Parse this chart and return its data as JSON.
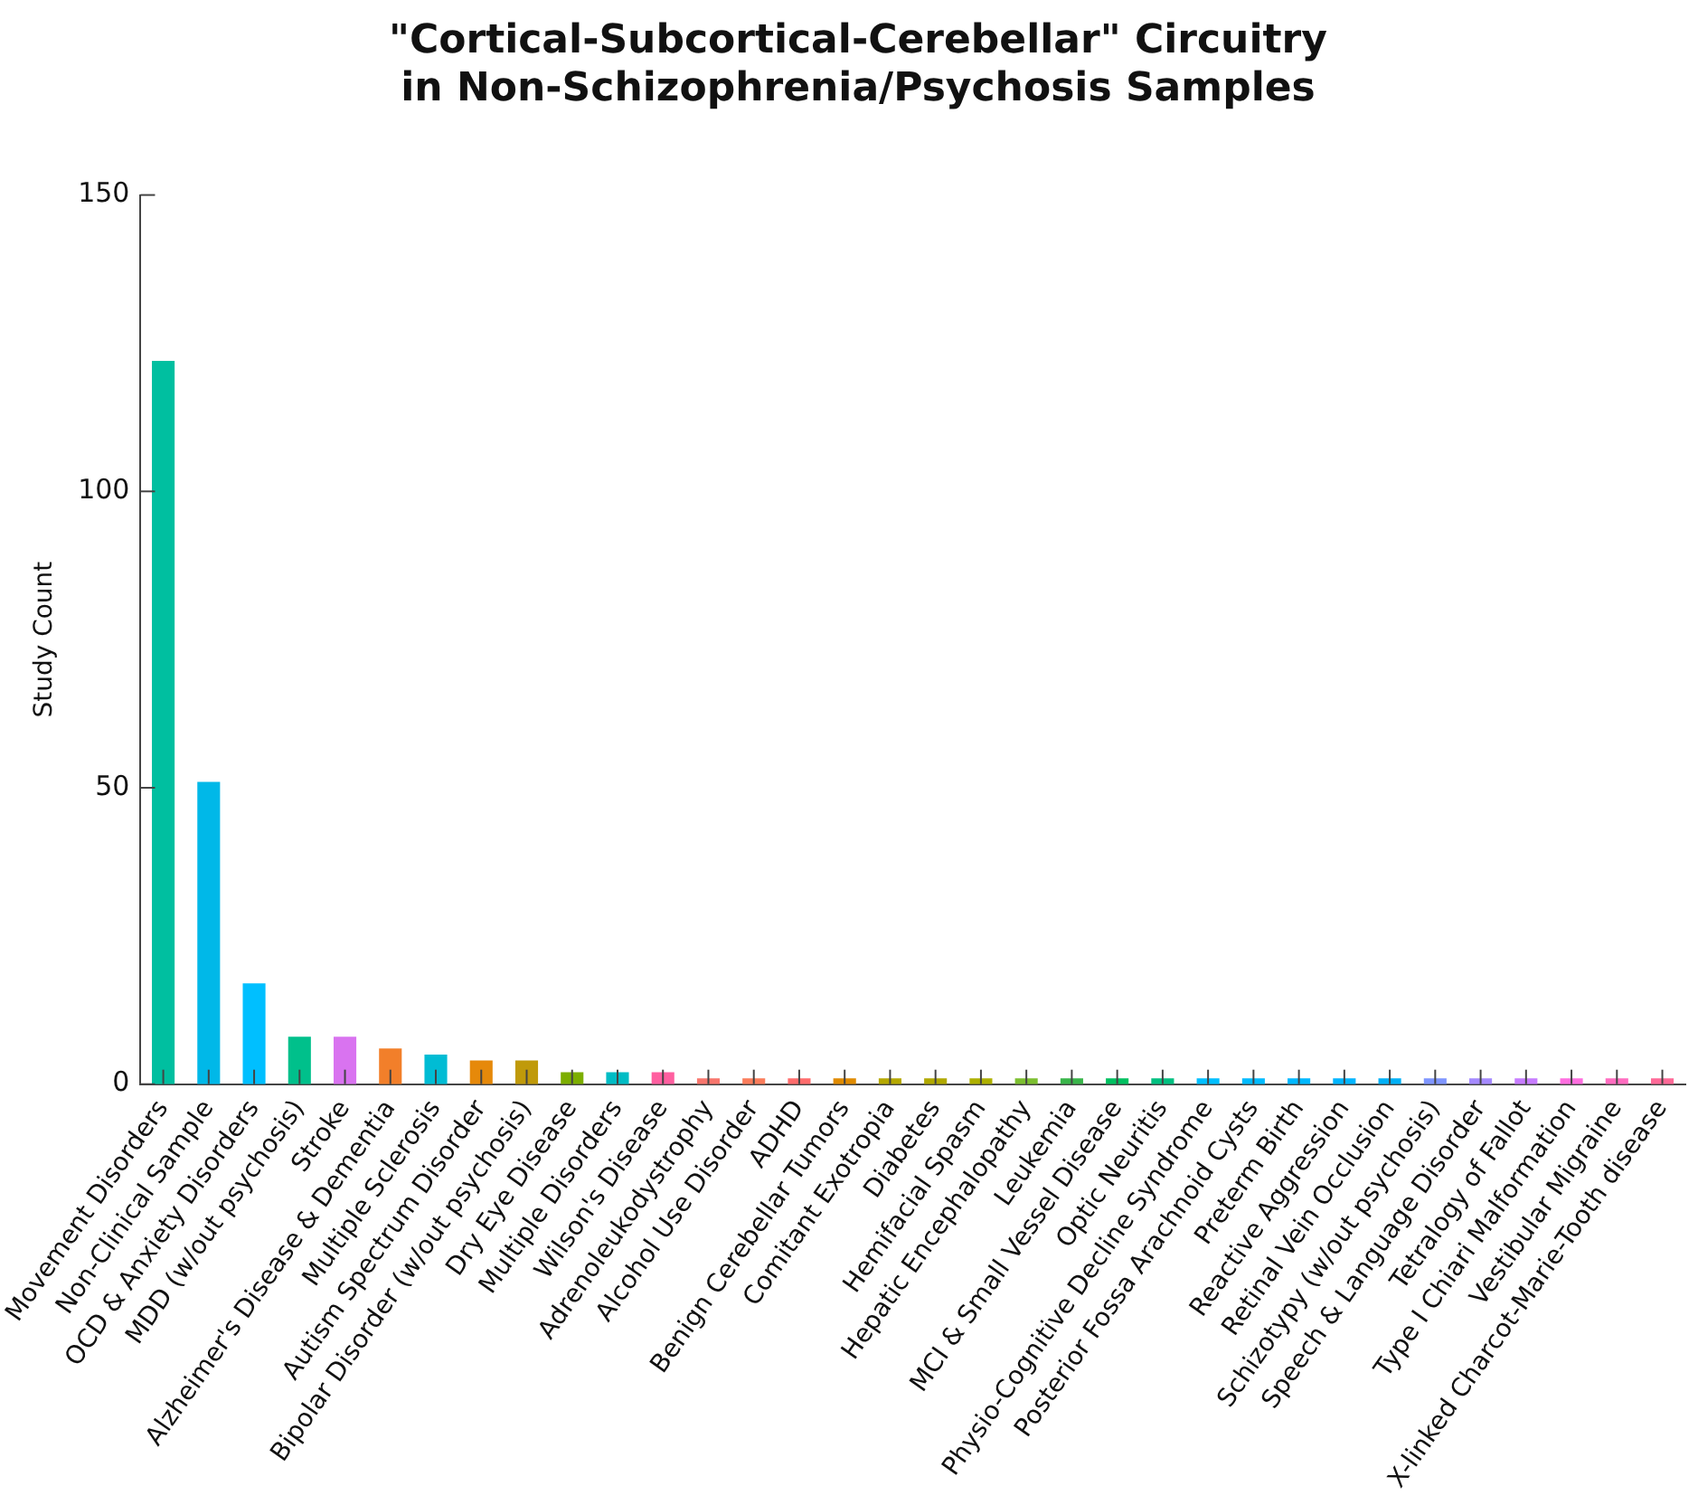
{
  "chart_data": {
    "type": "bar",
    "title": "\"Cortical-Subcortical-Cerebellar\" Circuitry\nin Non-Schizophrenia/Psychosis Samples",
    "ylabel": "Study Count",
    "categories": [
      "Movement Disorders",
      "Non-Clinical Sample",
      "OCD & Anxiety Disorders",
      "MDD (w/out psychosis)",
      "Stroke",
      "Alzheimer's Disease & Dementia",
      "Multiple Sclerosis",
      "Autism Spectrum Disorder",
      "Bipolar Disorder (w/out psychosis)",
      "Dry Eye Disease",
      "Multiple Disorders",
      "Wilson's Disease",
      "Adrenoleukodystrophy",
      "Alcohol Use Disorder",
      "ADHD",
      "Benign Cerebellar Tumors",
      "Comitant Exotropia",
      "Diabetes",
      "Hemifacial Spasm",
      "Hepatic Encephalopathy",
      "Leukemia",
      "MCI & Small Vessel Disease",
      "Optic Neuritis",
      "Physio-Cognitive Decline Syndrome",
      "Posterior Fossa Arachnoid Cysts",
      "Preterm Birth",
      "Reactive Aggression",
      "Retinal Vein Occlusion",
      "Schizotypy (w/out psychosis)",
      "Speech & Language Disorder",
      "Tetralogy of Fallot",
      "Type I Chiari Malformation",
      "Vestibular Migraine",
      "X-linked Charcot-Marie-Tooth disease"
    ],
    "values": [
      122,
      51,
      17,
      8,
      8,
      6,
      5,
      4,
      4,
      2,
      2,
      2,
      1,
      1,
      1,
      1,
      1,
      1,
      1,
      1,
      1,
      1,
      1,
      1,
      1,
      1,
      1,
      1,
      1,
      1,
      1,
      1,
      1,
      1
    ],
    "colors": [
      "#00bfa0",
      "#00b8e8",
      "#00bfff",
      "#00c08b",
      "#d973f0",
      "#f27f2a",
      "#00bcd4",
      "#e6890a",
      "#c09a0a",
      "#7cae00",
      "#00bcc4",
      "#ff5fa0",
      "#f8766d",
      "#fb7d5b",
      "#ff6c6c",
      "#e08b00",
      "#b5a800",
      "#b0a800",
      "#aeb000",
      "#7cbf30",
      "#39b54a",
      "#00c060",
      "#00c080",
      "#00bfff",
      "#00bbff",
      "#00b8ff",
      "#00b5ff",
      "#00b0f6",
      "#7f96ff",
      "#a58aff",
      "#c77cff",
      "#ff6ee0",
      "#ff6cc0",
      "#ff6a98"
    ],
    "ylim": [
      0,
      150
    ],
    "yticks": [
      0,
      50,
      100,
      150
    ],
    "grid": false,
    "legend": false
  }
}
